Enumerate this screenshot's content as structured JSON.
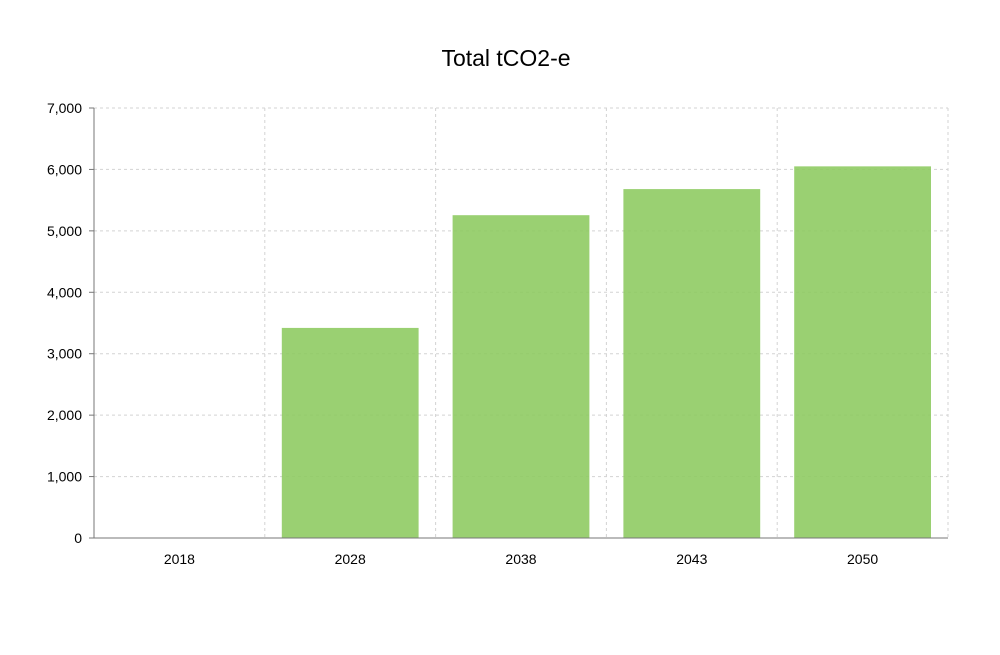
{
  "chart_data": {
    "type": "bar",
    "title": "Total tCO2-e",
    "xlabel": "",
    "ylabel": "",
    "categories": [
      "2018",
      "2028",
      "2038",
      "2043",
      "2050"
    ],
    "series": [
      {
        "values": [
          0,
          3420,
          5255,
          5680,
          6050
        ]
      }
    ],
    "ylim": [
      0,
      7000
    ],
    "y_ticks": [
      "0",
      "1,000",
      "2,000",
      "3,000",
      "4,000",
      "5,000",
      "6,000",
      "7,000"
    ],
    "grid": true,
    "legend": "none",
    "colors": {
      "bar": "#8cc95f",
      "grid": "#d3d3d3",
      "axis": "#777777"
    }
  }
}
